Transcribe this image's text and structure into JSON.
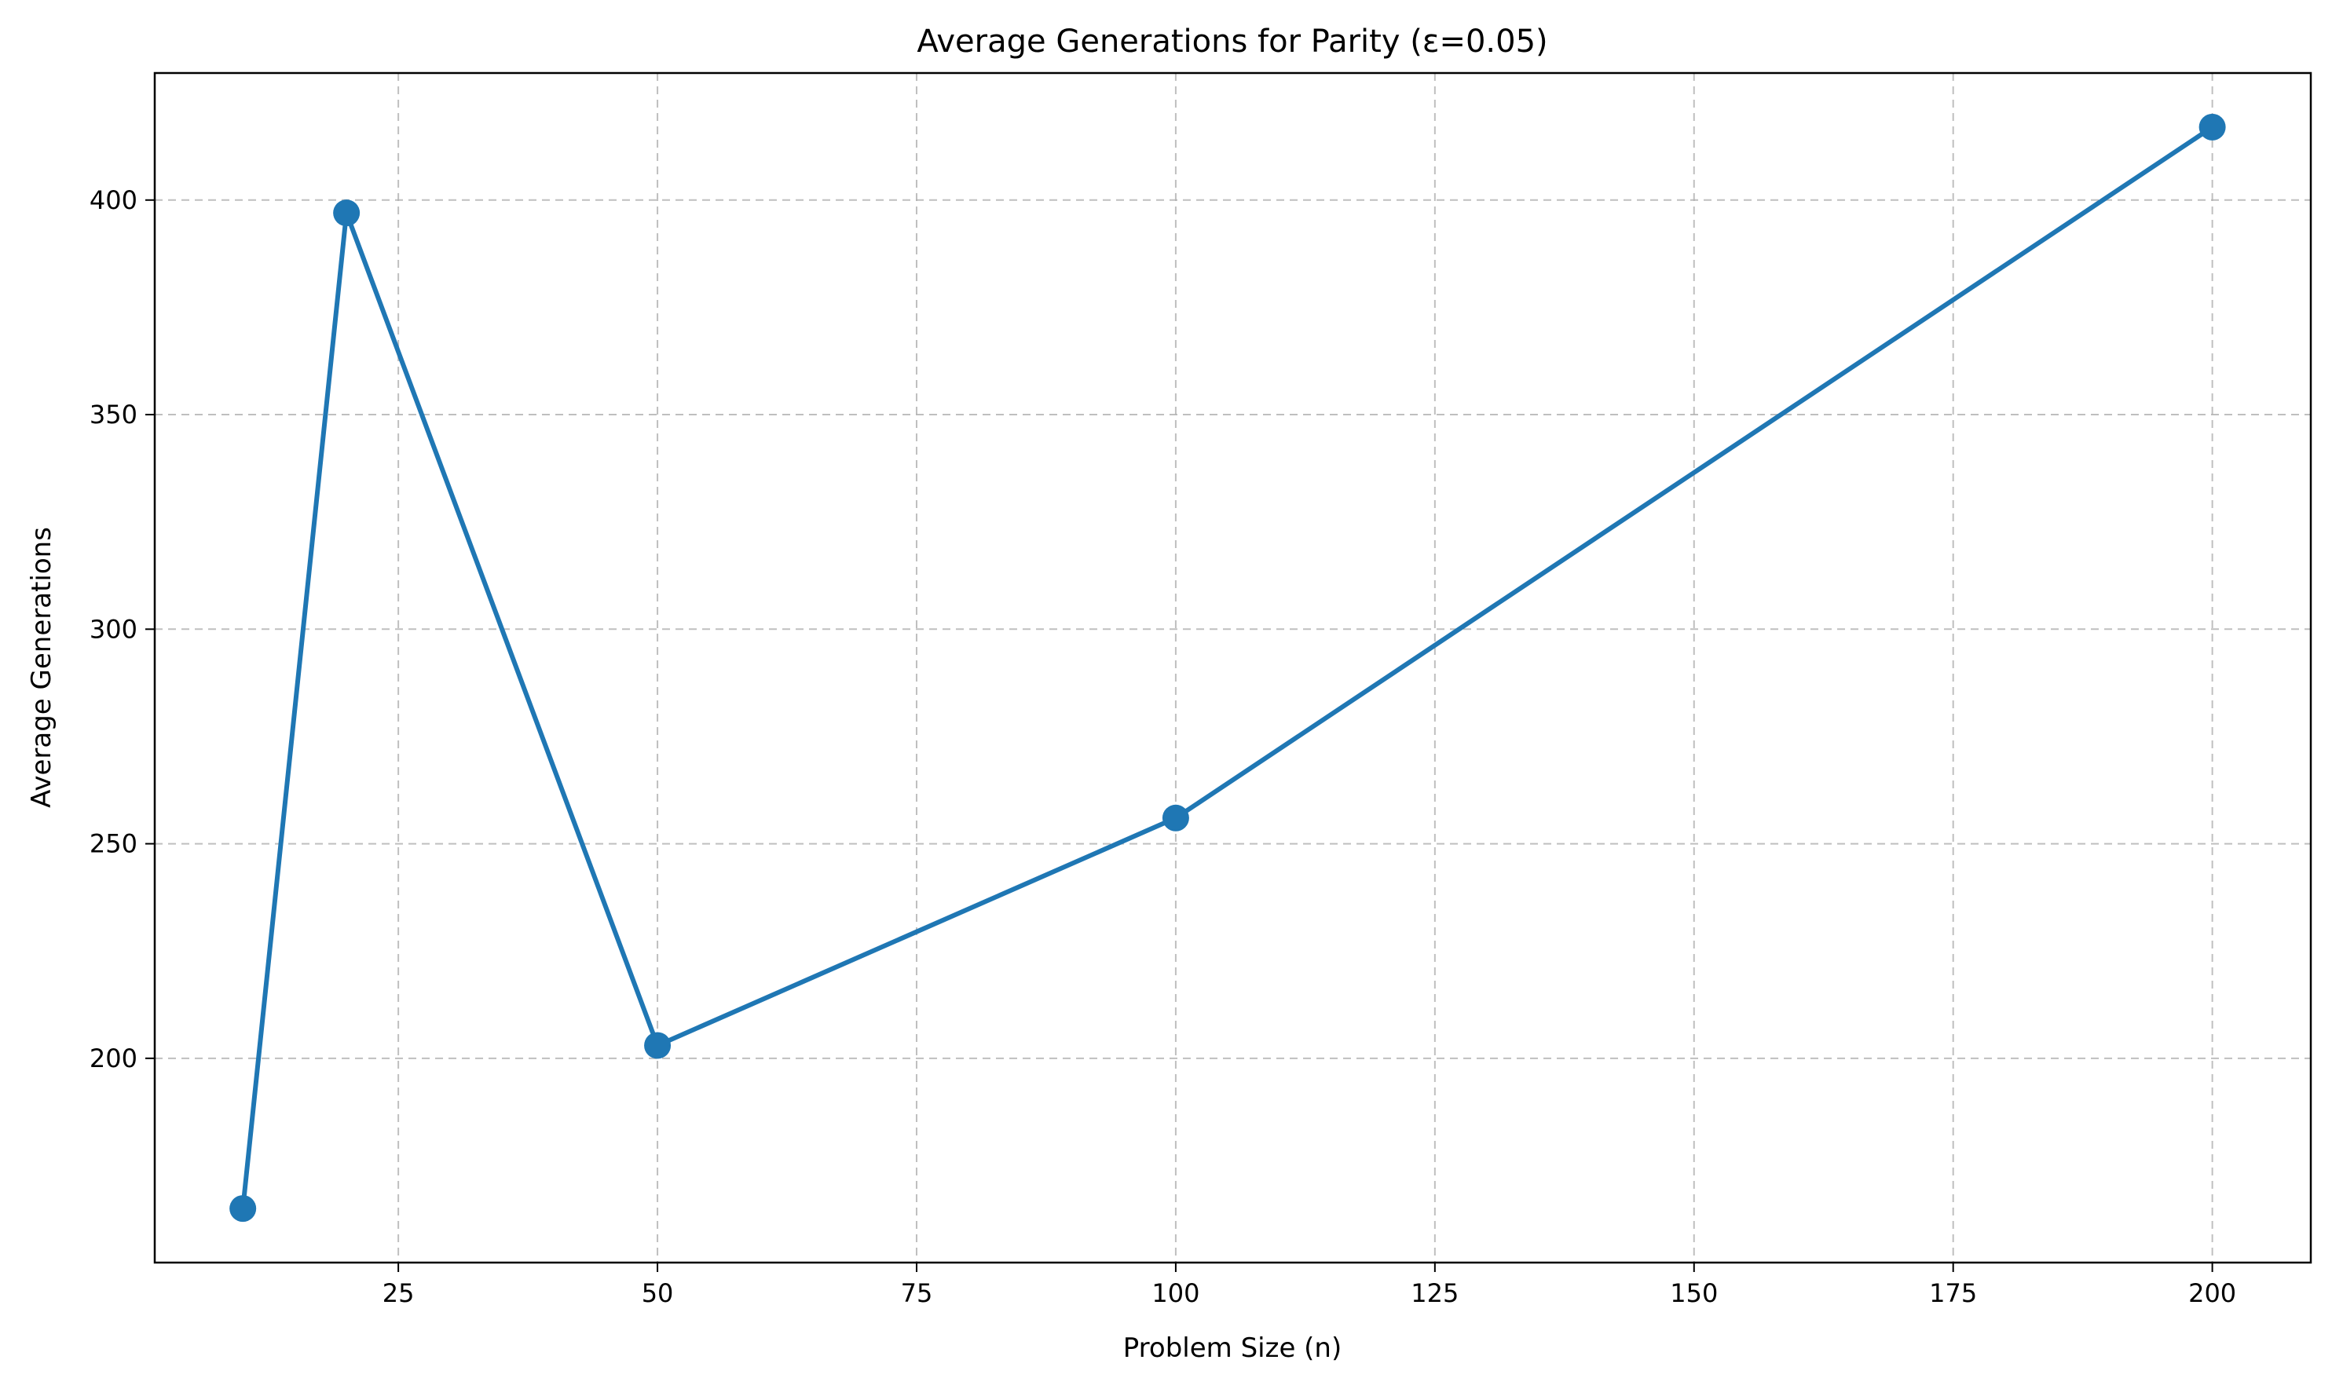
{
  "chart_data": {
    "type": "line",
    "title": "Average Generations for Parity (ε=0.05)",
    "xlabel": "Problem Size (n)",
    "ylabel": "Average Generations",
    "x": [
      10,
      20,
      50,
      100,
      200
    ],
    "series": [
      {
        "values": [
          165,
          397,
          203,
          256,
          417
        ],
        "color": "#1f77b4"
      }
    ],
    "xlim": [
      1.5,
      209.5
    ],
    "ylim": [
      152.4,
      429.6
    ],
    "xticks": [
      25,
      50,
      75,
      100,
      125,
      150,
      175,
      200
    ],
    "yticks": [
      200,
      250,
      300,
      350,
      400
    ],
    "grid": true,
    "marker": "circle"
  }
}
